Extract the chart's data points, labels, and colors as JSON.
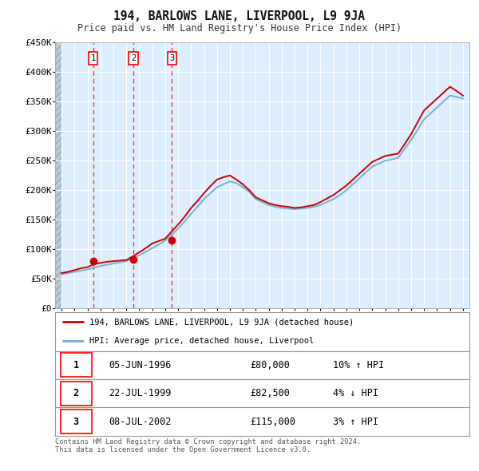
{
  "title": "194, BARLOWS LANE, LIVERPOOL, L9 9JA",
  "subtitle": "Price paid vs. HM Land Registry's House Price Index (HPI)",
  "ylim": [
    0,
    450000
  ],
  "yticks": [
    0,
    50000,
    100000,
    150000,
    200000,
    250000,
    300000,
    350000,
    400000,
    450000
  ],
  "ytick_labels": [
    "£0",
    "£50K",
    "£100K",
    "£150K",
    "£200K",
    "£250K",
    "£300K",
    "£350K",
    "£400K",
    "£450K"
  ],
  "xlim": [
    1993.5,
    2025.5
  ],
  "xticks": [
    1994,
    1995,
    1996,
    1997,
    1998,
    1999,
    2000,
    2001,
    2002,
    2003,
    2004,
    2005,
    2006,
    2007,
    2008,
    2009,
    2010,
    2011,
    2012,
    2013,
    2014,
    2015,
    2016,
    2017,
    2018,
    2019,
    2020,
    2021,
    2022,
    2023,
    2024,
    2025
  ],
  "plot_bg_color": "#ddeeff",
  "grid_color": "#ffffff",
  "purchases": [
    {
      "index": 1,
      "date": "05-JUN-1996",
      "year": 1996.43,
      "price": 80000,
      "pct": "10%",
      "dir": "↑"
    },
    {
      "index": 2,
      "date": "22-JUL-1999",
      "year": 1999.55,
      "price": 82500,
      "pct": "4%",
      "dir": "↓"
    },
    {
      "index": 3,
      "date": "08-JUL-2002",
      "year": 2002.52,
      "price": 115000,
      "pct": "3%",
      "dir": "↑"
    }
  ],
  "red_line_color": "#cc0000",
  "blue_line_color": "#7ab0d4",
  "marker_color": "#cc0000",
  "vline_color": "#dd4444",
  "legend_label_red": "194, BARLOWS LANE, LIVERPOOL, L9 9JA (detached house)",
  "legend_label_blue": "HPI: Average price, detached house, Liverpool",
  "footer": "Contains HM Land Registry data © Crown copyright and database right 2024.\nThis data is licensed under the Open Government Licence v3.0.",
  "hpi_years": [
    1994,
    1994.5,
    1995,
    1995.5,
    1996,
    1996.5,
    1997,
    1997.5,
    1998,
    1998.5,
    1999,
    1999.5,
    2000,
    2000.5,
    2001,
    2001.5,
    2002,
    2002.5,
    2003,
    2003.5,
    2004,
    2004.5,
    2005,
    2005.5,
    2006,
    2006.5,
    2007,
    2007.5,
    2008,
    2008.5,
    2009,
    2009.5,
    2010,
    2010.5,
    2011,
    2011.5,
    2012,
    2012.5,
    2013,
    2013.5,
    2014,
    2014.5,
    2015,
    2015.5,
    2016,
    2016.5,
    2017,
    2017.5,
    2018,
    2018.5,
    2019,
    2019.5,
    2020,
    2020.5,
    2021,
    2021.5,
    2022,
    2022.5,
    2023,
    2023.5,
    2024,
    2024.5,
    2025
  ],
  "hpi_values": [
    58000,
    60000,
    62000,
    64000,
    66000,
    69000,
    72000,
    74000,
    76000,
    78000,
    80000,
    85000,
    90000,
    96000,
    102000,
    108000,
    115000,
    125000,
    135000,
    147000,
    160000,
    172000,
    185000,
    195000,
    205000,
    210000,
    215000,
    212000,
    205000,
    197000,
    185000,
    180000,
    175000,
    172000,
    170000,
    169000,
    168000,
    169000,
    170000,
    172000,
    175000,
    180000,
    185000,
    192000,
    200000,
    210000,
    220000,
    230000,
    240000,
    245000,
    250000,
    252000,
    255000,
    270000,
    285000,
    302000,
    320000,
    330000,
    340000,
    350000,
    360000,
    358000,
    355000
  ],
  "red_years": [
    1994,
    1994.5,
    1995,
    1995.5,
    1996,
    1996.5,
    1997,
    1997.5,
    1998,
    1998.5,
    1999,
    1999.5,
    2000,
    2000.5,
    2001,
    2001.5,
    2002,
    2002.5,
    2003,
    2003.5,
    2004,
    2004.5,
    2005,
    2005.5,
    2006,
    2006.5,
    2007,
    2007.5,
    2008,
    2008.5,
    2009,
    2009.5,
    2010,
    2010.5,
    2011,
    2011.5,
    2012,
    2012.5,
    2013,
    2013.5,
    2014,
    2014.5,
    2015,
    2015.5,
    2016,
    2016.5,
    2017,
    2017.5,
    2018,
    2018.5,
    2019,
    2019.5,
    2020,
    2020.5,
    2021,
    2021.5,
    2022,
    2022.5,
    2023,
    2023.5,
    2024,
    2024.5,
    2025
  ],
  "red_values": [
    60000,
    62000,
    65000,
    68000,
    70000,
    75000,
    77000,
    79000,
    80000,
    81000,
    82000,
    88000,
    95000,
    102000,
    110000,
    114000,
    118000,
    130000,
    142000,
    155000,
    170000,
    182000,
    195000,
    207000,
    218000,
    222000,
    225000,
    218000,
    210000,
    200000,
    188000,
    183000,
    178000,
    175000,
    173000,
    172000,
    170000,
    171000,
    173000,
    175000,
    180000,
    186000,
    192000,
    200000,
    208000,
    218000,
    228000,
    238000,
    248000,
    253000,
    258000,
    260000,
    262000,
    278000,
    295000,
    315000,
    335000,
    345000,
    355000,
    365000,
    375000,
    368000,
    360000
  ],
  "table_rows": [
    {
      "num": "1",
      "date": "05-JUN-1996",
      "price": "£80,000",
      "hpi": "10% ↑ HPI"
    },
    {
      "num": "2",
      "date": "22-JUL-1999",
      "price": "£82,500",
      "hpi": "4% ↓ HPI"
    },
    {
      "num": "3",
      "date": "08-JUL-2002",
      "price": "£115,000",
      "hpi": "3% ↑ HPI"
    }
  ]
}
